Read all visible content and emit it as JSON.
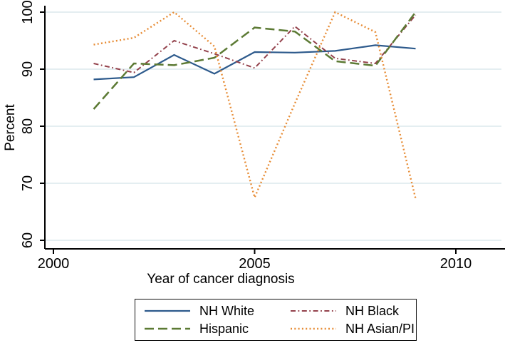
{
  "figure": {
    "xlabel": "Year of cancer diagnosis",
    "ylabel": "Percent"
  },
  "chart_data": {
    "type": "line",
    "x": [
      2001,
      2002,
      2003,
      2004,
      2005,
      2006,
      2007,
      2008,
      2009
    ],
    "series": [
      {
        "name": "NH White",
        "color": "#2d5a8c",
        "dash": "solid",
        "width": 2.2,
        "values": [
          88.2,
          88.6,
          92.5,
          89.2,
          93.0,
          92.9,
          93.2,
          94.2,
          93.6
        ]
      },
      {
        "name": "NH Black",
        "color": "#93414b",
        "dash": "dashdot",
        "width": 2.0,
        "values": [
          91.0,
          89.4,
          95.0,
          92.7,
          90.2,
          97.5,
          91.9,
          91.0,
          99.5
        ]
      },
      {
        "name": "Hispanic",
        "color": "#5c7a34",
        "dash": "longdash",
        "width": 2.5,
        "values": [
          83.0,
          91.0,
          90.7,
          92.0,
          97.3,
          96.6,
          91.4,
          90.6,
          100.0
        ]
      },
      {
        "name": "NH Asian/PI",
        "color": "#e78c35",
        "dash": "dot",
        "width": 2.4,
        "values": [
          94.3,
          95.5,
          100.0,
          94.0,
          67.5,
          84.0,
          100.0,
          96.5,
          67.3
        ]
      }
    ],
    "title": "",
    "xlabel": "Year of cancer diagnosis",
    "ylabel": "Percent",
    "xlim": [
      2000,
      2011.2
    ],
    "ylim": [
      60,
      100
    ],
    "xticks": [
      2000,
      2005,
      2010
    ],
    "yticks": [
      60,
      70,
      80,
      90,
      100
    ],
    "grid": true,
    "grid_color": "#e4eef1",
    "axis_color": "#000000",
    "legend_position": "bottom-center",
    "legend_order": [
      "NH White",
      "NH Black",
      "Hispanic",
      "NH Asian/PI"
    ]
  }
}
